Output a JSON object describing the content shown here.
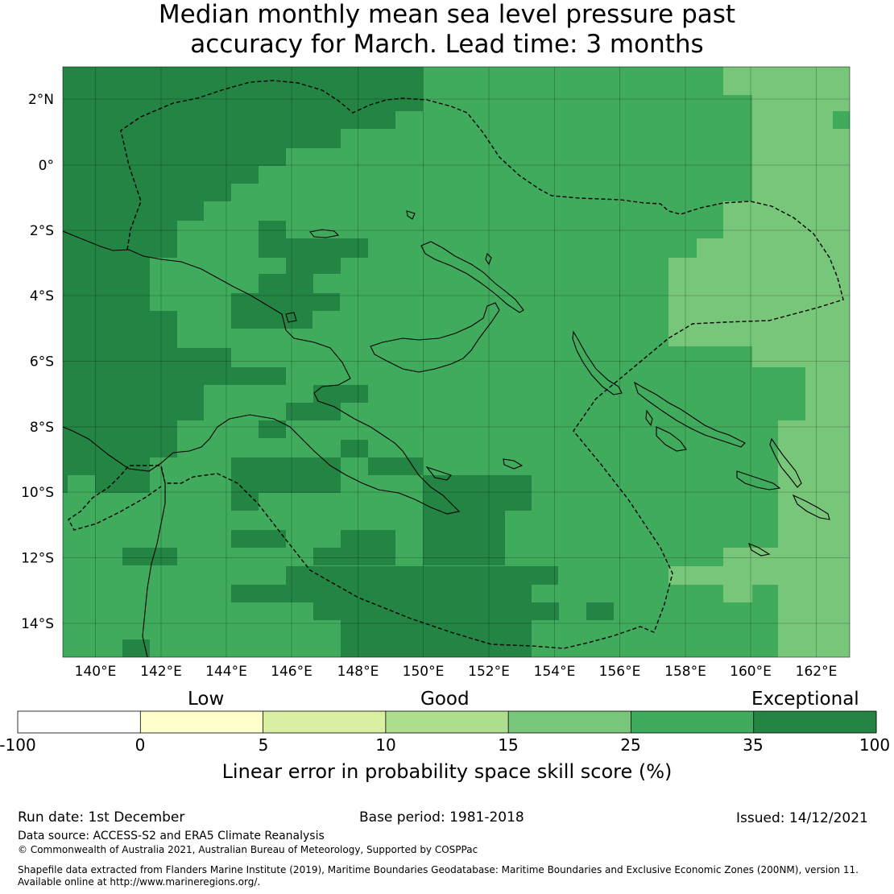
{
  "title": {
    "line1": "Median monthly mean sea level pressure past",
    "line2": "accuracy for March. Lead time: 3 months"
  },
  "map": {
    "lon_labels": [
      "140°E",
      "142°E",
      "144°E",
      "146°E",
      "148°E",
      "150°E",
      "152°E",
      "154°E",
      "156°E",
      "158°E",
      "160°E",
      "162°E"
    ],
    "lat_labels": [
      "2°N",
      "0°",
      "2°S",
      "4°S",
      "6°S",
      "8°S",
      "10°S",
      "12°S",
      "14°S"
    ],
    "colors": {
      "exceptional": "#238443",
      "25_35": "#41ab5d",
      "15_25": "#78c679",
      "10_15": "#addd8e",
      "5_10": "#d9f0a3",
      "0_5": "#ffffcc",
      "below_0": "#ffffff"
    }
  },
  "colorbar": {
    "categories": [
      "Low",
      "Good",
      "Exceptional"
    ],
    "ticks": [
      "-100",
      "0",
      "5",
      "10",
      "15",
      "25",
      "35",
      "100"
    ],
    "label": "Linear error in probability space skill score (%)"
  },
  "footer": {
    "run_date": "Run date: 1st December",
    "base_period": "Base period: 1981-2018",
    "issued": "Issued: 14/12/2021",
    "data_source": "Data source: ACCESS-S2 and ERA5 Climate Reanalysis",
    "copyright": "© Commonwealth of Australia 2021, Australian Bureau of Meteorology, Supported by COSPPac",
    "shapefile_1": "Shapefile data extracted from Flanders Marine Institute (2019), Maritime Boundaries Geodatabase: Maritime Boundaries and Exclusive Economic Zones (200NM), version 11.",
    "shapefile_2": "Available online at http://www.marineregions.org/."
  }
}
